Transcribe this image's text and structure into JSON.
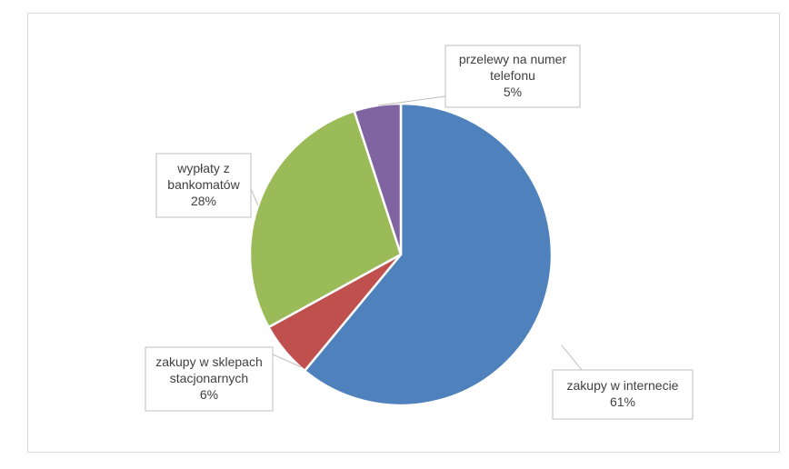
{
  "chart_data": {
    "type": "pie",
    "title": "",
    "series": [
      {
        "values": [
          61,
          6,
          28,
          5
        ]
      }
    ],
    "categories": [
      "zakupy w internecie",
      "zakupy w sklepach stacjonarnych",
      "wypłaty z bankomatów",
      "przelewy na numer telefonu"
    ],
    "slices": [
      {
        "label_lines": [
          "zakupy w internecie"
        ],
        "value": 61,
        "percent_label": "61%",
        "color": "#4F81BD"
      },
      {
        "label_lines": [
          "zakupy w sklepach",
          "stacjonarnych"
        ],
        "value": 6,
        "percent_label": "6%",
        "color": "#C0504D"
      },
      {
        "label_lines": [
          "wypłaty z",
          "bankomatów"
        ],
        "value": 28,
        "percent_label": "28%",
        "color": "#9BBB59"
      },
      {
        "label_lines": [
          "przelewy na numer",
          "telefonu"
        ],
        "value": 5,
        "percent_label": "5%",
        "color": "#8064A2"
      }
    ],
    "start_angle_deg": 0,
    "direction": "clockwise",
    "legend": "none",
    "data_labels": "callouts"
  }
}
